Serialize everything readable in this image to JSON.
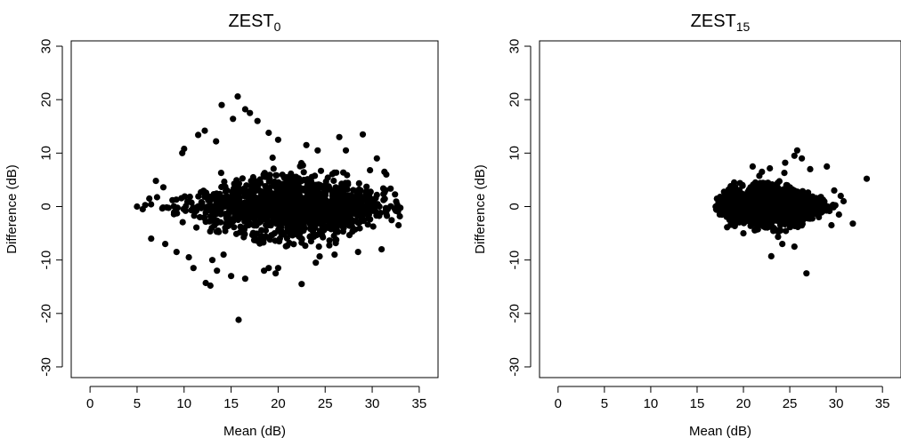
{
  "chart_data": [
    {
      "type": "scatter",
      "title": "ZEST",
      "title_subscript": "0",
      "xlabel": "Mean (dB)",
      "ylabel": "Difference (dB)",
      "xlim": [
        -2,
        37
      ],
      "ylim": [
        -32,
        31
      ],
      "xticks": [
        0,
        5,
        10,
        15,
        20,
        25,
        30,
        35
      ],
      "yticks": [
        -30,
        -20,
        -10,
        0,
        10,
        20,
        30
      ],
      "point_color": "#000000",
      "grid": false,
      "cluster": {
        "x_mean": 21.5,
        "x_sd": 5.0,
        "y_sd": 3.4,
        "x_min": 5.0,
        "x_max": 33.0,
        "n": 1400
      },
      "points": [
        [
          15.7,
          20.6
        ],
        [
          14.0,
          19.0
        ],
        [
          16.5,
          18.2
        ],
        [
          17.0,
          17.5
        ],
        [
          15.2,
          16.4
        ],
        [
          17.8,
          16.0
        ],
        [
          12.2,
          14.2
        ],
        [
          11.5,
          13.4
        ],
        [
          13.4,
          12.2
        ],
        [
          19.0,
          13.8
        ],
        [
          20.0,
          12.5
        ],
        [
          26.5,
          13.0
        ],
        [
          29.0,
          13.5
        ],
        [
          23.0,
          11.5
        ],
        [
          10.0,
          10.8
        ],
        [
          24.2,
          10.5
        ],
        [
          27.2,
          10.5
        ],
        [
          9.8,
          10.0
        ],
        [
          30.5,
          9.0
        ],
        [
          31.3,
          6.5
        ],
        [
          31.5,
          6.0
        ],
        [
          32.8,
          -3.5
        ],
        [
          31.0,
          -8.0
        ],
        [
          28.5,
          -8.5
        ],
        [
          22.5,
          -14.5
        ],
        [
          15.8,
          -21.2
        ],
        [
          12.3,
          -14.3
        ],
        [
          12.8,
          -14.8
        ],
        [
          15.0,
          -13.0
        ],
        [
          16.5,
          -13.5
        ],
        [
          13.5,
          -12.0
        ],
        [
          11.0,
          -11.5
        ],
        [
          10.5,
          -9.5
        ],
        [
          18.5,
          -12.0
        ],
        [
          19.0,
          -11.5
        ],
        [
          20.0,
          -11.5
        ],
        [
          13.0,
          -10.0
        ],
        [
          14.2,
          -9.0
        ],
        [
          24.0,
          -10.5
        ],
        [
          26.0,
          -9.0
        ],
        [
          9.2,
          -8.5
        ],
        [
          8.0,
          -7.0
        ],
        [
          6.5,
          -6.0
        ],
        [
          5.0,
          0.0
        ],
        [
          5.6,
          -0.5
        ],
        [
          6.3,
          1.5
        ],
        [
          7.0,
          4.8
        ],
        [
          7.8,
          3.6
        ]
      ]
    },
    {
      "type": "scatter",
      "title": "ZEST",
      "title_subscript": "15",
      "xlabel": "Mean (dB)",
      "ylabel": "Difference (dB)",
      "xlim": [
        -2,
        37
      ],
      "ylim": [
        -32,
        31
      ],
      "xticks": [
        0,
        5,
        10,
        15,
        20,
        25,
        30,
        35
      ],
      "yticks": [
        -30,
        -20,
        -10,
        0,
        10,
        20,
        30
      ],
      "point_color": "#000000",
      "grid": false,
      "cluster": {
        "x_mean": 22.5,
        "x_sd": 3.0,
        "y_sd": 1.9,
        "x_min": 17.0,
        "x_max": 30.0,
        "n": 1400
      },
      "points": [
        [
          33.3,
          5.2
        ],
        [
          31.8,
          -3.2
        ],
        [
          26.8,
          -12.5
        ],
        [
          23.0,
          -9.3
        ],
        [
          25.8,
          10.5
        ],
        [
          25.5,
          9.5
        ],
        [
          26.3,
          9.0
        ],
        [
          24.5,
          8.2
        ],
        [
          29.0,
          7.5
        ],
        [
          27.2,
          7.0
        ],
        [
          21.0,
          7.5
        ],
        [
          17.0,
          0.0
        ],
        [
          29.8,
          3.0
        ],
        [
          30.5,
          2.0
        ],
        [
          30.8,
          1.0
        ],
        [
          30.3,
          -1.5
        ],
        [
          29.5,
          -3.5
        ],
        [
          25.5,
          -7.5
        ],
        [
          24.2,
          -7.0
        ],
        [
          20.0,
          -5.0
        ],
        [
          18.5,
          -2.5
        ],
        [
          18.0,
          2.5
        ],
        [
          19.0,
          4.5
        ],
        [
          22.0,
          6.5
        ]
      ]
    }
  ]
}
